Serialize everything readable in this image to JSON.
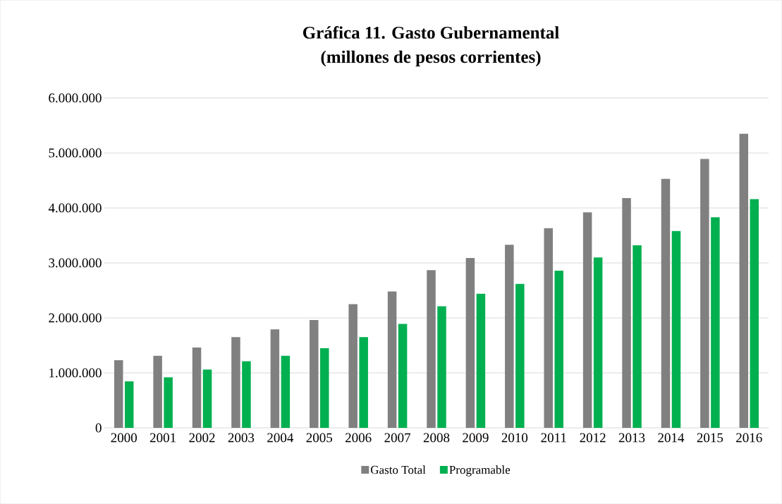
{
  "chart_data": {
    "type": "bar",
    "title": "Gráfica 11. Gasto Gubernamental",
    "subtitle": "(millones de pesos corrientes)",
    "categories": [
      "2000",
      "2001",
      "2002",
      "2003",
      "2004",
      "2005",
      "2006",
      "2007",
      "2008",
      "2009",
      "2010",
      "2011",
      "2012",
      "2013",
      "2014",
      "2015",
      "2016"
    ],
    "series": [
      {
        "name": "Gasto Total",
        "color": "#808080",
        "values": [
          1230000,
          1310000,
          1460000,
          1650000,
          1790000,
          1960000,
          2250000,
          2480000,
          2870000,
          3090000,
          3330000,
          3630000,
          3920000,
          4180000,
          4530000,
          4890000,
          5350000
        ]
      },
      {
        "name": "Programable",
        "color": "#00b050",
        "values": [
          846000,
          920000,
          1060000,
          1210000,
          1310000,
          1450000,
          1650000,
          1890000,
          2210000,
          2440000,
          2620000,
          2860000,
          3100000,
          3320000,
          3580000,
          3830000,
          4160000
        ]
      }
    ],
    "ylim": [
      0,
      6000000
    ],
    "yticks": [
      {
        "value": 0,
        "label": "0"
      },
      {
        "value": 1000000,
        "label": "1.000.000"
      },
      {
        "value": 2000000,
        "label": "2.000.000"
      },
      {
        "value": 3000000,
        "label": "3.000.000"
      },
      {
        "value": 4000000,
        "label": "4.000.000"
      },
      {
        "value": 5000000,
        "label": "5.000.000"
      },
      {
        "value": 6000000,
        "label": "6.000.000"
      }
    ],
    "grid": "y",
    "legend": "bottom"
  }
}
